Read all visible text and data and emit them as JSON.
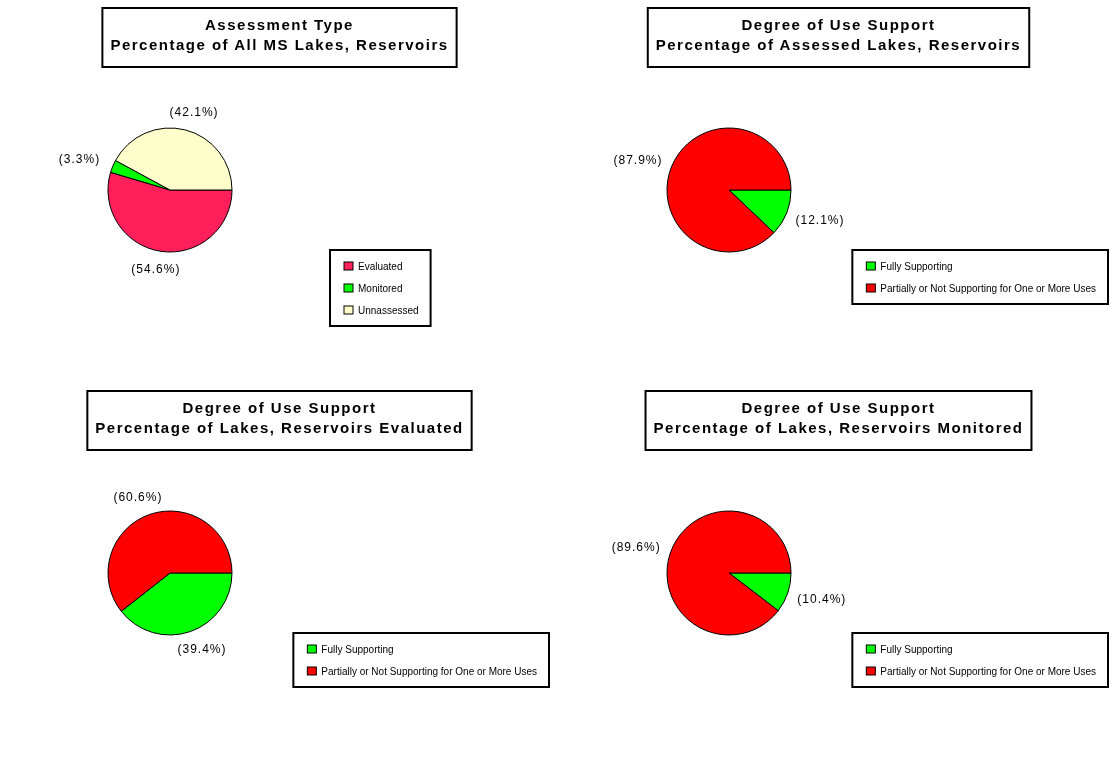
{
  "chart_data": [
    {
      "type": "pie",
      "title": "Assessment Type\nPercentage of All MS Lakes, Reservoirs",
      "categories": [
        "Evaluated",
        "Monitored",
        "Unnassessed"
      ],
      "values": [
        54.6,
        3.3,
        42.1
      ],
      "value_labels": [
        "(54.6%)",
        "(3.3%)",
        "(42.1%)"
      ],
      "colors": [
        "#ff1f5a",
        "#00ff00",
        "#ffffcc"
      ],
      "legend": "bottom right"
    },
    {
      "type": "pie",
      "title": "Degree of Use Support\nPercentage of Assessed Lakes, Reservoirs",
      "categories": [
        "Fully Supporting",
        "Partially or Not Supporting for One or More Uses"
      ],
      "values": [
        12.1,
        87.9
      ],
      "value_labels": [
        "(12.1%)",
        "(87.9%)"
      ],
      "colors": [
        "#00ff00",
        "#ff0000"
      ],
      "legend": "bottom right"
    },
    {
      "type": "pie",
      "title": "Degree of Use Support\nPercentage of Lakes, Reservoirs Evaluated",
      "categories": [
        "Fully Supporting",
        "Partially or Not Supporting for One or More Uses"
      ],
      "values": [
        39.4,
        60.6
      ],
      "value_labels": [
        "(39.4%)",
        "(60.6%)"
      ],
      "colors": [
        "#00ff00",
        "#ff0000"
      ],
      "legend": "bottom right"
    },
    {
      "type": "pie",
      "title": "Degree of Use Support\nPercentage of Lakes, Reservoirs Monitored",
      "categories": [
        "Fully Supporting",
        "Partially or Not Supporting for One or More Uses"
      ],
      "values": [
        10.4,
        89.6
      ],
      "value_labels": [
        "(10.4%)",
        "(89.6%)"
      ],
      "colors": [
        "#00ff00",
        "#ff0000"
      ],
      "legend": "bottom right"
    }
  ]
}
